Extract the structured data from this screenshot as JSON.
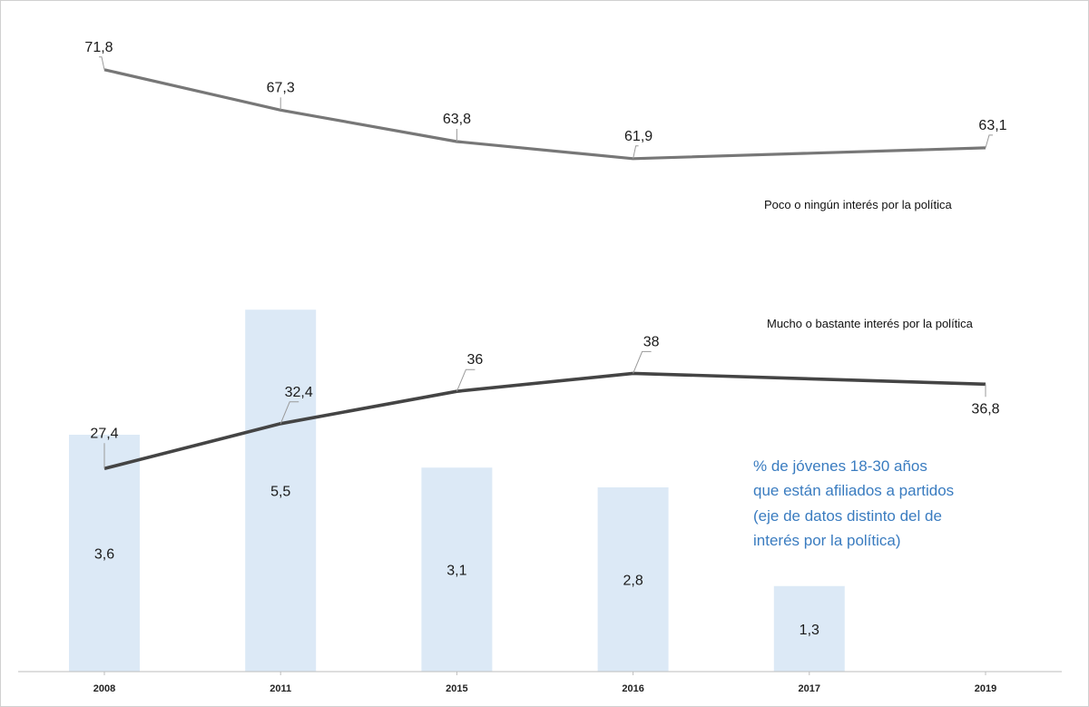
{
  "chart_data": {
    "type": "bar",
    "categories": [
      "2008",
      "2011",
      "2015",
      "2016",
      "2017",
      "2019"
    ],
    "series": [
      {
        "name": "Poco o ningún interés por la política",
        "type": "line",
        "axis": "primary",
        "values": [
          71.8,
          67.3,
          63.8,
          61.9,
          null,
          63.1
        ],
        "labels": [
          "71,8",
          "67,3",
          "63,8",
          "61,9",
          null,
          "63,1"
        ],
        "color": "#777777"
      },
      {
        "name": "Mucho o bastante interés por la política",
        "type": "line",
        "axis": "primary",
        "values": [
          27.4,
          32.4,
          36,
          38,
          null,
          36.8
        ],
        "labels": [
          "27,4",
          "32,4",
          "36",
          "38",
          null,
          "36,8"
        ],
        "color": "#444444"
      },
      {
        "name": "% de jóvenes 18-30 años que están afiliados a partidos (eje de datos distinto del de interés por la política)",
        "type": "bar",
        "axis": "secondary",
        "values": [
          3.6,
          5.5,
          3.1,
          2.8,
          1.3,
          null
        ],
        "labels": [
          "3,6",
          "5,5",
          "3,1",
          "2,8",
          "1,3",
          null
        ],
        "color": "#dce9f6"
      }
    ],
    "primary_ylim": [
      0,
      80
    ],
    "secondary_ylim": [
      0,
      6
    ],
    "note_lines": [
      "% de jóvenes 18-30 años",
      "que están afiliados a partidos",
      "(eje de datos distinto del de",
      "interés por la política)"
    ],
    "note_color": "#3a7cc0",
    "grid": false
  }
}
